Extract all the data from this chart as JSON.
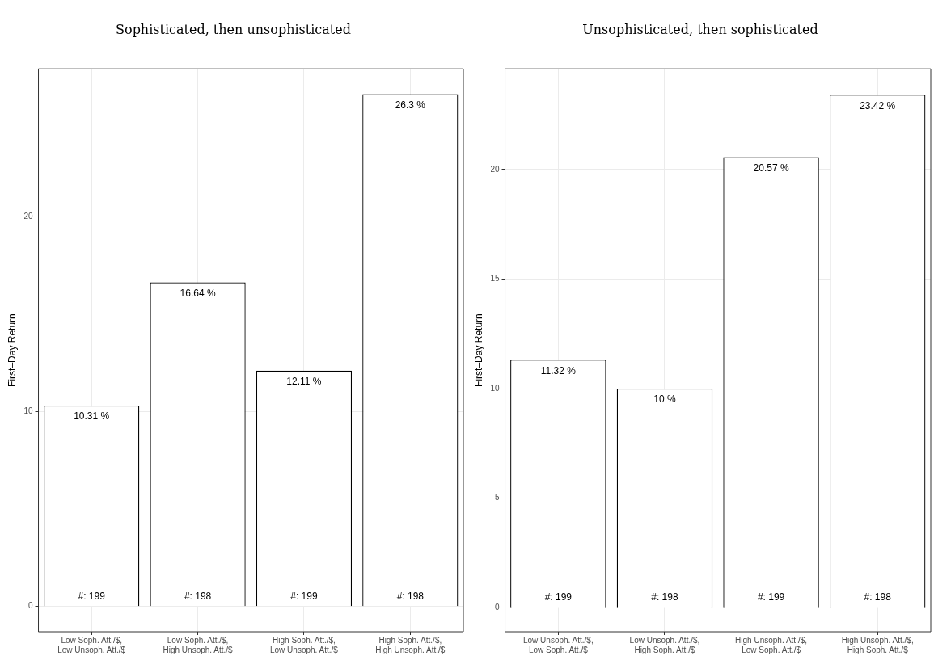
{
  "chart_data": [
    {
      "type": "bar",
      "title": "Sophisticated, then unsophisticated",
      "ylabel": "First–Day Return",
      "categories": [
        "Low Soph. Att./$, Low Unsoph. Att./$",
        "Low Soph. Att./$, High Unsoph. Att./$",
        "High Soph. Att./$, Low Unsoph. Att./$",
        "High Soph. Att./$, High Unsoph. Att./$"
      ],
      "values": [
        10.31,
        16.64,
        12.11,
        26.3
      ],
      "color": "#ffffff",
      "value_labels": [
        "10.31 %",
        "16.64 %",
        "12.11 %",
        "26.3 %"
      ],
      "annotations": [
        {
          "text": "#: 199",
          "x": "Low Soph. Att./$, Low Unsoph. Att./$",
          "y": 0
        },
        {
          "text": "#: 198",
          "x": "Low Soph. Att./$, High Unsoph. Att./$",
          "y": 0
        },
        {
          "text": "#: 199",
          "x": "High Soph. Att./$, Low Unsoph. Att./$",
          "y": 0
        },
        {
          "text": "#: 198",
          "x": "High Soph. Att./$, High Unsoph. Att./$",
          "y": 0
        }
      ],
      "ylim": [
        -1.3,
        27.6
      ],
      "yticks": [
        0,
        10,
        20
      ],
      "grid": true,
      "legend": false
    },
    {
      "type": "bar",
      "title": "Unsophisticated, then sophisticated",
      "ylabel": "First–Day Return",
      "categories": [
        "Low Unsoph. Att./$, Low Soph. Att./$",
        "Low Unsoph. Att./$, High Soph. Att./$",
        "High Unsoph. Att./$, Low Soph. Att./$",
        "High Unsoph. Att./$, High Soph. Att./$"
      ],
      "values": [
        11.32,
        10,
        20.57,
        23.42
      ],
      "color": "#ffffff",
      "value_labels": [
        "11.32 %",
        "10 %",
        "20.57 %",
        "23.42 %"
      ],
      "annotations": [
        {
          "text": "#: 199",
          "x": "Low Unsoph. Att./$, Low Soph. Att./$",
          "y": 0
        },
        {
          "text": "#: 198",
          "x": "Low Unsoph. Att./$, High Soph. Att./$",
          "y": 0
        },
        {
          "text": "#: 199",
          "x": "High Unsoph. Att./$, Low Soph. Att./$",
          "y": 0
        },
        {
          "text": "#: 198",
          "x": "High Unsoph. Att./$, High Soph. Att./$",
          "y": 0
        }
      ],
      "ylim": [
        -1.1,
        24.6
      ],
      "yticks": [
        0,
        5,
        10,
        15,
        20
      ],
      "grid": true,
      "legend": false
    }
  ]
}
